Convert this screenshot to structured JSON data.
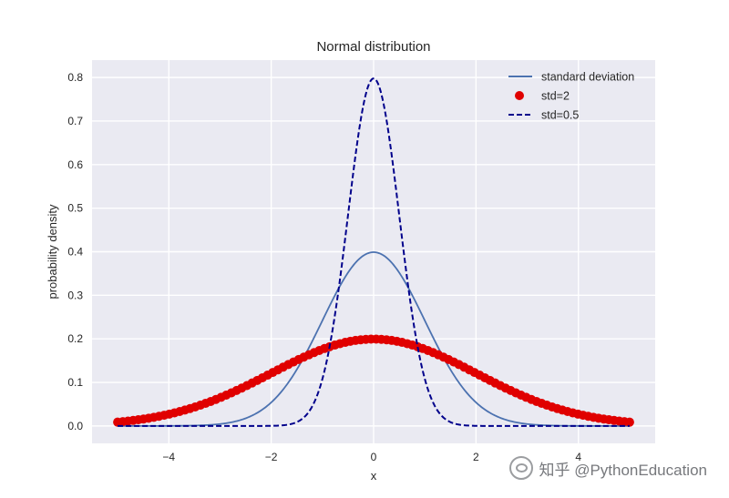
{
  "chart_data": {
    "type": "line",
    "title": "Normal distribution",
    "xlabel": "x",
    "ylabel": "probability density",
    "xlim": [
      -5.5,
      5.5
    ],
    "ylim": [
      -0.04,
      0.84
    ],
    "xticks": [
      -4,
      -2,
      0,
      2,
      4
    ],
    "xtick_labels": [
      "−4",
      "−2",
      "0",
      "2",
      "4"
    ],
    "yticks": [
      0.0,
      0.1,
      0.2,
      0.3,
      0.4,
      0.5,
      0.6,
      0.7,
      0.8
    ],
    "ytick_labels": [
      "0.0",
      "0.1",
      "0.2",
      "0.3",
      "0.4",
      "0.5",
      "0.6",
      "0.7",
      "0.8"
    ],
    "grid": true,
    "background": "#eaeaf2",
    "legend_position": "top-right",
    "x_range": [
      -5,
      5
    ],
    "series": [
      {
        "name": "standard deviation",
        "style": "solid-line",
        "mean": 0,
        "std": 1,
        "color": "#4c72b0"
      },
      {
        "name": "std=2",
        "style": "markers",
        "mean": 0,
        "std": 2,
        "color": "#e00000"
      },
      {
        "name": "std=0.5",
        "style": "dashed-line",
        "mean": 0,
        "std": 0.5,
        "color": "#00008b"
      }
    ]
  },
  "watermark": {
    "text": "知乎 @PythonEducation"
  }
}
